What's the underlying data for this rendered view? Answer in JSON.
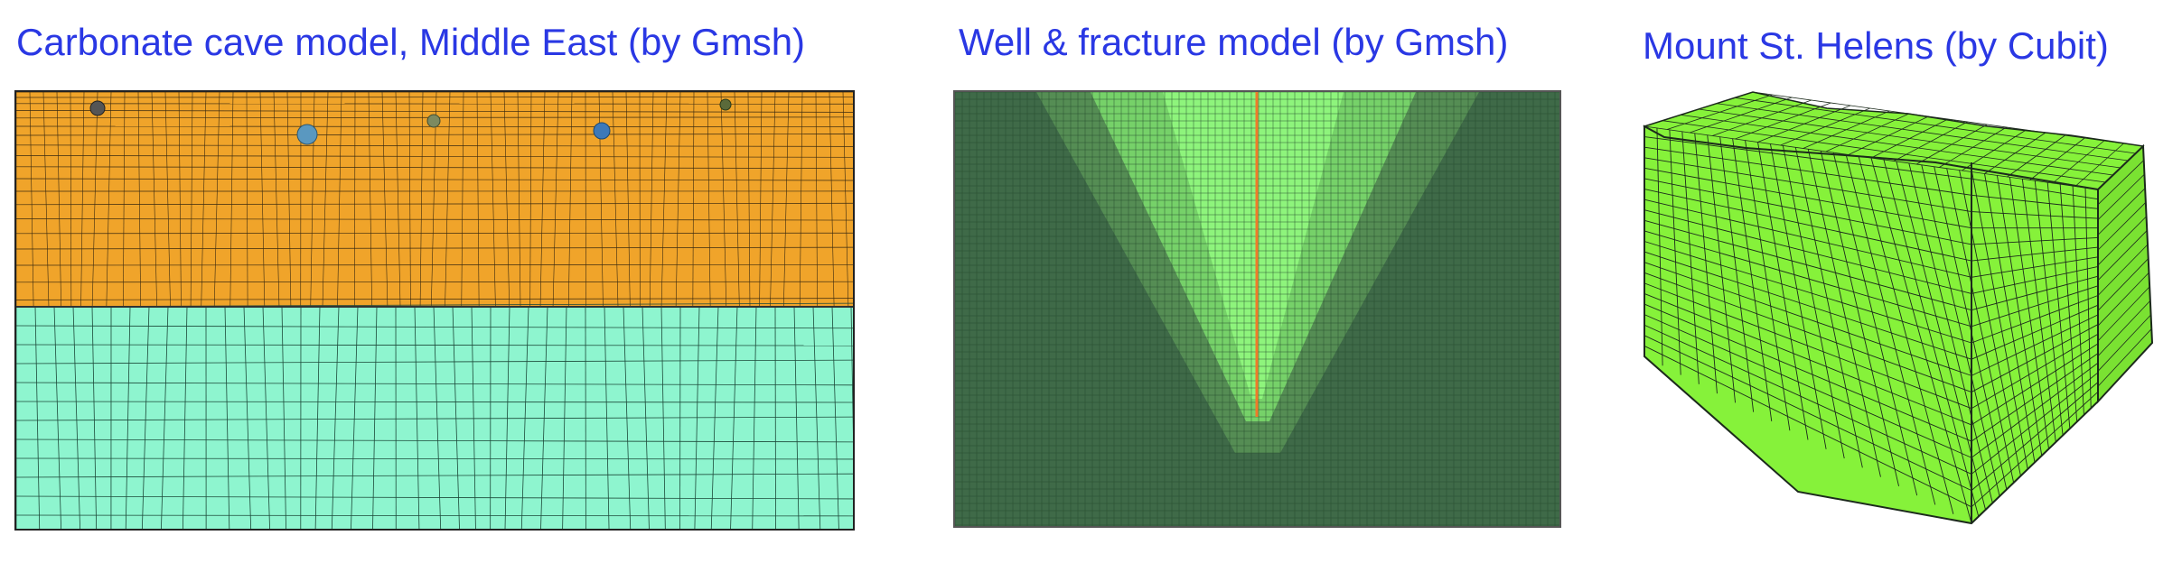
{
  "panels": [
    {
      "title": "Carbonate cave model, Middle East (by Gmsh)"
    },
    {
      "title": "Well & fracture model (by Gmsh)"
    },
    {
      "title": "Mount St. Helens (by Cubit)"
    }
  ],
  "colors": {
    "title": "#2a38e4",
    "cave_upper_layer": "#f0a42a",
    "cave_lower_layer": "#8ef5cf",
    "well_background": "#3f6a48",
    "well_fracture_zone": "#8cf07a",
    "well_line": "#f07b2a",
    "helens_mesh": "#86f23a",
    "mesh_lines": "#1c2a1c"
  },
  "icons": [
    "cave-void-marker",
    "well-line",
    "mesh-block"
  ]
}
